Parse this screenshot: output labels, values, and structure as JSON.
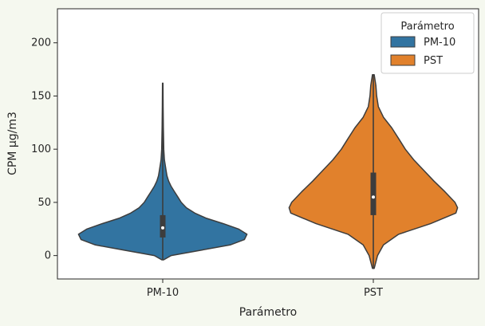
{
  "chart_data": {
    "type": "violin",
    "xlabel": "Parámetro",
    "ylabel": "CPM µg/m3",
    "ylim": [
      -22,
      232
    ],
    "yticks": [
      0,
      50,
      100,
      150,
      200
    ],
    "categories": [
      "PM-10",
      "PST"
    ],
    "legend": {
      "title": "Parámetro",
      "position": "top-right",
      "entries": [
        "PM-10",
        "PST"
      ]
    },
    "series": [
      {
        "name": "PM-10",
        "color": "#3274a1",
        "range": [
          -4,
          162
        ],
        "quartiles": [
          17,
          26,
          38
        ],
        "median": 26,
        "density_profile": [
          [
            -4,
            0.01
          ],
          [
            0,
            0.1
          ],
          [
            5,
            0.45
          ],
          [
            10,
            0.8
          ],
          [
            15,
            0.97
          ],
          [
            20,
            1.0
          ],
          [
            25,
            0.9
          ],
          [
            30,
            0.72
          ],
          [
            35,
            0.52
          ],
          [
            40,
            0.38
          ],
          [
            45,
            0.28
          ],
          [
            50,
            0.22
          ],
          [
            55,
            0.18
          ],
          [
            60,
            0.14
          ],
          [
            65,
            0.1
          ],
          [
            70,
            0.07
          ],
          [
            75,
            0.05
          ],
          [
            80,
            0.04
          ],
          [
            90,
            0.02
          ],
          [
            100,
            0.012
          ],
          [
            120,
            0.008
          ],
          [
            140,
            0.005
          ],
          [
            162,
            0.003
          ]
        ]
      },
      {
        "name": "PST",
        "color": "#e1812c",
        "range": [
          -12,
          170
        ],
        "quartiles": [
          38,
          55,
          78
        ],
        "median": 55,
        "density_profile": [
          [
            -12,
            0.01
          ],
          [
            0,
            0.05
          ],
          [
            10,
            0.12
          ],
          [
            20,
            0.3
          ],
          [
            30,
            0.68
          ],
          [
            40,
            0.98
          ],
          [
            45,
            1.0
          ],
          [
            50,
            0.97
          ],
          [
            60,
            0.85
          ],
          [
            70,
            0.72
          ],
          [
            80,
            0.6
          ],
          [
            90,
            0.48
          ],
          [
            100,
            0.38
          ],
          [
            110,
            0.3
          ],
          [
            120,
            0.22
          ],
          [
            130,
            0.12
          ],
          [
            140,
            0.06
          ],
          [
            150,
            0.04
          ],
          [
            160,
            0.03
          ],
          [
            170,
            0.01
          ]
        ]
      }
    ]
  }
}
